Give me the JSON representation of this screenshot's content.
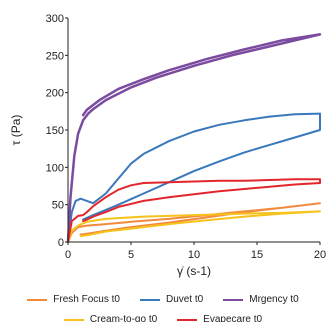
{
  "chart_data": {
    "type": "line",
    "title": "",
    "xlabel": "γ̇ (s-1)",
    "ylabel": "τ (Pa)",
    "xlim": [
      0,
      20
    ],
    "ylim": [
      0,
      300
    ],
    "xticks": [
      "0",
      "5",
      "10",
      "15",
      "20"
    ],
    "yticks": [
      "0",
      "50",
      "100",
      "150",
      "200",
      "250",
      "300"
    ],
    "grid": false,
    "legend_position": "bottom",
    "series": [
      {
        "name": "Fresh Focus t0",
        "color": "#f28a3c",
        "x": [
          0,
          0.3,
          0.8,
          1.5,
          3,
          5,
          8,
          11,
          14,
          17,
          20,
          17,
          14,
          11,
          8,
          5,
          3,
          1.5,
          1
        ],
        "y": [
          0,
          12,
          20,
          22,
          24,
          27,
          31,
          36,
          41,
          46,
          52,
          46,
          40,
          33,
          26,
          20,
          15,
          11,
          10
        ]
      },
      {
        "name": "Duvet t0",
        "color": "#3a78bd",
        "x": [
          0,
          0.3,
          0.6,
          1,
          1.5,
          2,
          3,
          4,
          5,
          6,
          8,
          10,
          12,
          14,
          16,
          18,
          20,
          20,
          18,
          16,
          14,
          12,
          10,
          8,
          6,
          4,
          3,
          2,
          1.2
        ],
        "y": [
          0,
          40,
          55,
          58,
          55,
          52,
          65,
          85,
          105,
          118,
          135,
          148,
          157,
          163,
          168,
          171,
          172,
          150,
          140,
          130,
          120,
          108,
          95,
          80,
          65,
          50,
          43,
          36,
          30
        ]
      },
      {
        "name": "Mrgency t0",
        "color": "#7b4ba0",
        "x": [
          0,
          0.2,
          0.5,
          0.8,
          1.2,
          1.6,
          2,
          3,
          5,
          7,
          10,
          13,
          16,
          20,
          17,
          14,
          11,
          8,
          6,
          4,
          2.5,
          1.5,
          1.2
        ],
        "y": [
          0,
          60,
          115,
          145,
          163,
          172,
          178,
          190,
          207,
          220,
          236,
          250,
          262,
          278,
          270,
          258,
          245,
          230,
          218,
          205,
          190,
          177,
          170
        ]
      },
      {
        "name": "Cream-to-go t0",
        "color": "#f7c21b",
        "x": [
          0,
          0.3,
          0.8,
          1.5,
          3,
          6,
          10,
          14,
          17,
          20,
          17,
          14,
          11,
          8,
          5,
          3,
          1.5,
          1
        ],
        "y": [
          0,
          15,
          22,
          27,
          31,
          34,
          36,
          38,
          39,
          41,
          38,
          34,
          29,
          24,
          18,
          14,
          9,
          8
        ]
      },
      {
        "name": "Evapecare t0",
        "color": "#e3262c",
        "x": [
          0,
          0.3,
          0.8,
          1.2,
          1.5,
          2,
          3,
          4,
          5,
          6,
          8,
          10,
          12,
          14,
          16,
          18,
          20,
          20,
          18,
          16,
          14,
          12,
          10,
          8,
          6,
          4,
          3,
          2,
          1.5,
          1.2
        ],
        "y": [
          0,
          28,
          35,
          36,
          40,
          48,
          60,
          70,
          76,
          79,
          80,
          81,
          82,
          82,
          83,
          84,
          84,
          79,
          77,
          74,
          71,
          68,
          64,
          60,
          55,
          47,
          40,
          34,
          30,
          28
        ]
      }
    ]
  }
}
